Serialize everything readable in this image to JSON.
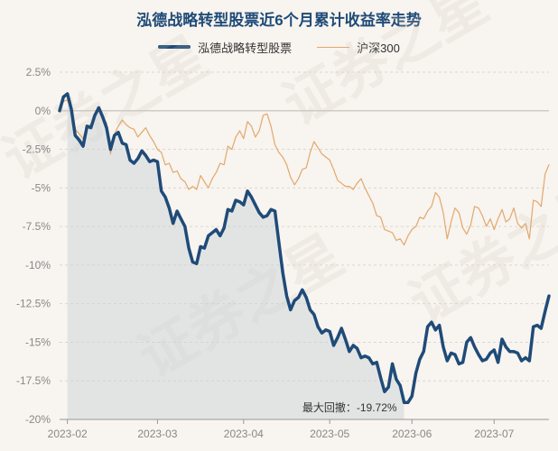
{
  "chart_data": {
    "type": "line",
    "title": "泓德战略转型股票近6个月累计收益率走势",
    "ylim": [
      -20,
      2.5
    ],
    "yticks": [
      2.5,
      0,
      -2.5,
      -5,
      -7.5,
      -10,
      -12.5,
      -15,
      -17.5,
      -20
    ],
    "ytick_labels": [
      "2.5%",
      "0%",
      "-2.5%",
      "-5%",
      "-7.5%",
      "-10%",
      "-12.5%",
      "-15%",
      "-17.5%",
      "-20%"
    ],
    "xticks": [
      "2023-02",
      "2023-03",
      "2023-04",
      "2023-05",
      "2023-06",
      "2023-07"
    ],
    "legend_position": "top-center",
    "grid": true,
    "series": [
      {
        "name": "泓德战略转型股票",
        "color": "#1f4b78",
        "values": [
          0,
          0.9,
          1.1,
          0.1,
          -1.6,
          -1.9,
          -2.3,
          -1.0,
          -1.1,
          -0.3,
          0.2,
          -0.4,
          -1.1,
          -2.5,
          -1.6,
          -1.4,
          -2.1,
          -2.2,
          -3.2,
          -3.4,
          -3.1,
          -2.6,
          -2.9,
          -3.3,
          -3.2,
          -3.3,
          -5.2,
          -5.6,
          -6.3,
          -7.3,
          -6.5,
          -7.0,
          -7.5,
          -8.9,
          -9.8,
          -9.9,
          -8.8,
          -8.9,
          -8.1,
          -7.9,
          -7.7,
          -8.1,
          -7.6,
          -6.4,
          -6.5,
          -5.8,
          -5.9,
          -6.1,
          -5.2,
          -5.6,
          -6.1,
          -6.6,
          -6.9,
          -6.8,
          -6.4,
          -6.5,
          -8.5,
          -10.5,
          -12.0,
          -12.9,
          -12.3,
          -12.1,
          -11.6,
          -12.1,
          -12.9,
          -13.2,
          -14.0,
          -14.4,
          -14.2,
          -14.3,
          -15.2,
          -14.7,
          -14.1,
          -14.8,
          -15.6,
          -15.2,
          -15.4,
          -16.0,
          -15.9,
          -16.0,
          -16.4,
          -16.3,
          -17.3,
          -18.2,
          -17.9,
          -16.4,
          -17.4,
          -17.8,
          -18.9,
          -18.9,
          -18.5,
          -17.0,
          -16.1,
          -15.6,
          -14.0,
          -13.7,
          -14.2,
          -13.9,
          -15.3,
          -16.2,
          -15.7,
          -15.8,
          -16.4,
          -16.3,
          -15.0,
          -14.7,
          -15.3,
          -15.8,
          -16.2,
          -16.1,
          -15.7,
          -15.5,
          -16.3,
          -14.8,
          -15.3,
          -15.6,
          -15.6,
          -15.7,
          -16.2,
          -16.0,
          -16.2,
          -14.0,
          -13.9,
          -14.1,
          -13.0,
          -12.0
        ]
      },
      {
        "name": "沪深300",
        "color": "#e2a86c",
        "values": [
          0,
          0.6,
          0.7,
          0.2,
          -1.2,
          -1.5,
          -1.8,
          -1.0,
          -0.9,
          -0.3,
          0.1,
          -0.3,
          -0.8,
          -2.8,
          -1.5,
          -1.0,
          -0.6,
          -0.9,
          -1.1,
          -1.2,
          -1.7,
          -1.4,
          -1.1,
          -1.6,
          -2.0,
          -2.5,
          -2.7,
          -3.5,
          -3.4,
          -4.0,
          -3.9,
          -4.4,
          -4.6,
          -5.1,
          -4.9,
          -5.1,
          -4.2,
          -4.6,
          -5.0,
          -4.4,
          -4.0,
          -3.4,
          -3.5,
          -2.3,
          -2.5,
          -1.7,
          -1.3,
          -1.8,
          -0.7,
          -1.0,
          -1.7,
          -1.3,
          -0.3,
          -0.2,
          -1.0,
          -2.2,
          -2.7,
          -3.0,
          -3.5,
          -4.3,
          -4.8,
          -4.4,
          -3.8,
          -3.7,
          -2.7,
          -2.0,
          -2.4,
          -2.8,
          -3.0,
          -3.2,
          -3.8,
          -4.5,
          -4.7,
          -4.9,
          -4.9,
          -5.1,
          -4.7,
          -4.4,
          -5.0,
          -5.5,
          -6.0,
          -6.8,
          -6.9,
          -7.7,
          -7.8,
          -7.9,
          -8.4,
          -8.3,
          -8.7,
          -8.1,
          -7.7,
          -7.5,
          -6.9,
          -7.0,
          -6.5,
          -6.2,
          -5.3,
          -5.6,
          -6.6,
          -8.3,
          -7.2,
          -6.3,
          -6.6,
          -7.6,
          -8.0,
          -7.4,
          -6.2,
          -6.3,
          -6.8,
          -7.5,
          -7.0,
          -7.7,
          -7.0,
          -6.4,
          -7.2,
          -7.0,
          -6.3,
          -7.3,
          -7.6,
          -7.3,
          -8.3,
          -5.8,
          -5.9,
          -6.2,
          -4.1,
          -3.5
        ]
      }
    ],
    "annotation": "最大回撤：-19.72%"
  },
  "watermark": "证券之星"
}
